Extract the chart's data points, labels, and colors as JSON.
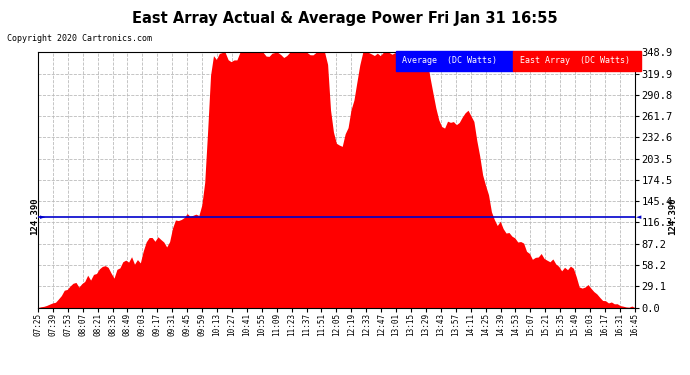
{
  "title": "East Array Actual & Average Power Fri Jan 31 16:55",
  "copyright": "Copyright 2020 Cartronics.com",
  "legend_entries": [
    "Average  (DC Watts)",
    "East Array  (DC Watts)"
  ],
  "avg_value": 124.39,
  "y_max": 348.9,
  "y_min": 0.0,
  "y_ticks": [
    0.0,
    29.1,
    58.2,
    87.2,
    116.3,
    145.4,
    174.5,
    203.5,
    232.6,
    261.7,
    290.8,
    319.9,
    348.9
  ],
  "background_color": "#ffffff",
  "grid_color": "#bbbbbb",
  "fill_color": "#ff0000",
  "avg_line_color": "#0000cc",
  "avg_label": "124.390",
  "x_tick_labels": [
    "07:25",
    "07:39",
    "07:53",
    "08:07",
    "08:21",
    "08:35",
    "08:49",
    "09:03",
    "09:17",
    "09:31",
    "09:45",
    "09:59",
    "10:13",
    "10:27",
    "10:41",
    "10:55",
    "11:09",
    "11:23",
    "11:37",
    "11:51",
    "12:05",
    "12:19",
    "12:33",
    "12:47",
    "13:01",
    "13:15",
    "13:29",
    "13:43",
    "13:57",
    "14:11",
    "14:25",
    "14:39",
    "14:53",
    "15:07",
    "15:21",
    "15:35",
    "15:49",
    "16:03",
    "16:17",
    "16:31",
    "16:45"
  ],
  "num_points": 205
}
